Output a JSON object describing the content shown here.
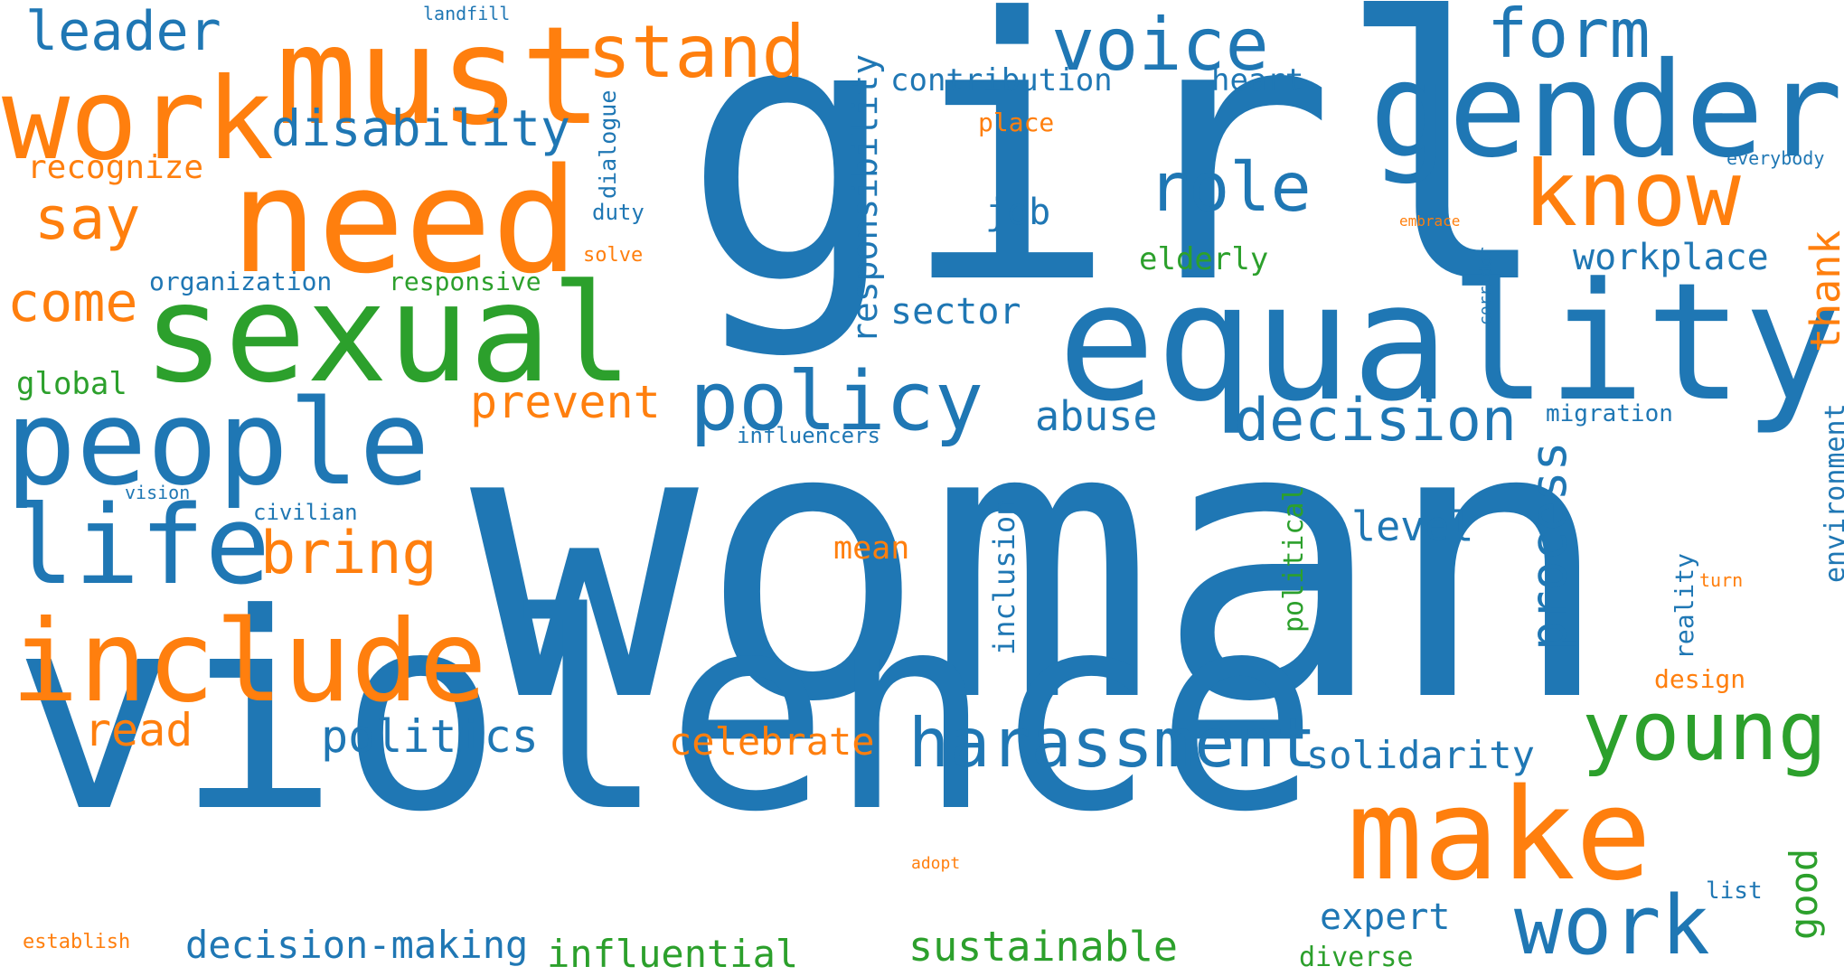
{
  "colors": {
    "blue": "#1f77b4",
    "orange": "#ff7f0e",
    "green": "#2ca02c",
    "background": "#ffffff"
  },
  "words": {
    "woman": "woman",
    "violence": "violence",
    "girl": "girl",
    "equality": "equality",
    "gender": "gender",
    "need": "need",
    "sexual": "sexual",
    "must": "must",
    "work_top": "work",
    "people": "people",
    "include": "include",
    "life": "life",
    "make": "make",
    "know": "know",
    "young": "young",
    "work_bottom": "work",
    "policy": "policy",
    "harassment": "harassment",
    "voice": "voice",
    "stand": "stand",
    "form": "form",
    "role": "role",
    "decision": "decision",
    "bring": "bring",
    "say": "say",
    "come": "come",
    "leader": "leader",
    "disability": "disability",
    "prevent": "prevent",
    "politics": "politics",
    "celebrate": "celebrate",
    "read": "read",
    "process": "process",
    "abuse": "abuse",
    "solidarity": "solidarity",
    "sustainable": "sustainable",
    "decision_making": "decision-making",
    "influential": "influential",
    "expert": "expert",
    "level": "level",
    "mean": "mean",
    "sector": "sector",
    "job": "job",
    "workplace": "workplace",
    "thank": "thank",
    "contribution": "contribution",
    "responsibility": "responsibility",
    "recognize": "recognize",
    "heart": "heart",
    "elderly": "elderly",
    "global": "global",
    "organization": "organization",
    "responsive": "responsive",
    "inclusion": "inclusion",
    "political": "political",
    "good": "good",
    "diverse": "diverse",
    "environment": "environment",
    "migration": "migration",
    "place": "place",
    "design": "design",
    "reality": "reality",
    "dialogue": "dialogue",
    "duty": "duty",
    "solve": "solve",
    "influencers": "influencers",
    "civilian": "civilian",
    "vision": "vision",
    "landfill": "landfill",
    "everybody": "everybody",
    "embrace": "embrace",
    "corridor": "corridor",
    "turn": "turn",
    "adopt": "adopt",
    "list": "list",
    "establish": "establish"
  }
}
